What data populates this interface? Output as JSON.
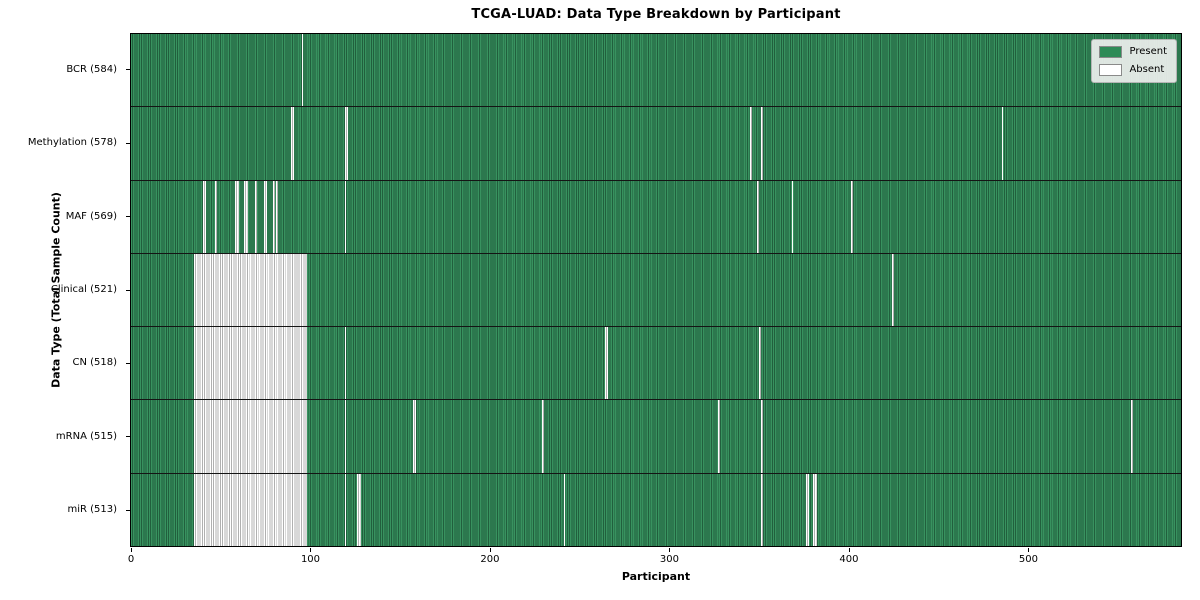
{
  "title": "TCGA-LUAD: Data Type Breakdown by Participant",
  "chart_data": {
    "type": "heatmap",
    "title": "TCGA-LUAD: Data Type Breakdown by Participant",
    "xlabel": "Participant",
    "ylabel": "Data Type (Total Sample Count)",
    "n_participants": 585,
    "x_ticks": [
      0,
      100,
      200,
      300,
      400,
      500
    ],
    "x_range": [
      0,
      585
    ],
    "grid": false,
    "legend_position": "upper right",
    "legend_entries": [
      {
        "label": "Present",
        "color": "#2e8b57"
      },
      {
        "label": "Absent",
        "color": "#ffffff"
      }
    ],
    "cell_states": {
      "present": 1,
      "absent": 0
    },
    "rows": [
      {
        "label": "BCR (584)",
        "data_type": "BCR",
        "sample_count": 584,
        "absent_ranges": [
          [
            95,
            95
          ]
        ]
      },
      {
        "label": "Methylation (578)",
        "data_type": "Methylation",
        "sample_count": 578,
        "absent_ranges": [
          [
            89,
            90
          ],
          [
            119,
            120
          ],
          [
            345,
            345
          ],
          [
            351,
            351
          ],
          [
            485,
            485
          ]
        ]
      },
      {
        "label": "MAF (569)",
        "data_type": "MAF",
        "sample_count": 569,
        "absent_ranges": [
          [
            40,
            41
          ],
          [
            47,
            47
          ],
          [
            58,
            59
          ],
          [
            63,
            64
          ],
          [
            69,
            69
          ],
          [
            74,
            75
          ],
          [
            79,
            79
          ],
          [
            81,
            81
          ],
          [
            119,
            119
          ],
          [
            349,
            349
          ],
          [
            368,
            368
          ],
          [
            401,
            401
          ]
        ]
      },
      {
        "label": "Clinical (521)",
        "data_type": "Clinical",
        "sample_count": 521,
        "absent_ranges": [
          [
            35,
            97
          ],
          [
            424,
            424
          ]
        ]
      },
      {
        "label": "CN (518)",
        "data_type": "CN",
        "sample_count": 518,
        "absent_ranges": [
          [
            35,
            97
          ],
          [
            119,
            119
          ],
          [
            264,
            265
          ],
          [
            350,
            350
          ]
        ]
      },
      {
        "label": "mRNA (515)",
        "data_type": "mRNA",
        "sample_count": 515,
        "absent_ranges": [
          [
            35,
            97
          ],
          [
            119,
            119
          ],
          [
            157,
            158
          ],
          [
            229,
            229
          ],
          [
            327,
            327
          ],
          [
            351,
            351
          ],
          [
            557,
            557
          ]
        ]
      },
      {
        "label": "miR (513)",
        "data_type": "miR",
        "sample_count": 513,
        "absent_ranges": [
          [
            35,
            97
          ],
          [
            119,
            119
          ],
          [
            126,
            127
          ],
          [
            241,
            241
          ],
          [
            351,
            351
          ],
          [
            376,
            377
          ],
          [
            380,
            381
          ]
        ]
      }
    ],
    "colors": {
      "present": "#2e8b57",
      "present_light": "#38925f",
      "present_dark": "#215f3d",
      "absent": "#ffffff",
      "absent_edge": "#b0b0b0",
      "row_divider": "#141414",
      "plot_border": "#000000",
      "legend_bg": "#eeeeee",
      "legend_border": "#b5b5b5",
      "text": "#000000"
    }
  }
}
